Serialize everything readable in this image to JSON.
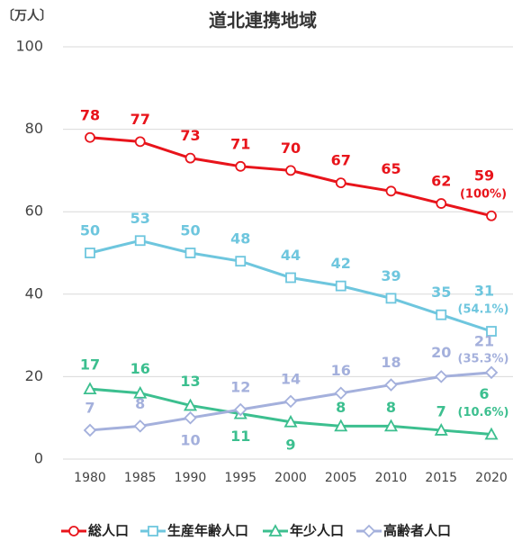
{
  "chart_data": {
    "type": "line",
    "title": "道北連携地域",
    "y_label": "〔万人〕",
    "categories": [
      "1980",
      "1985",
      "1990",
      "1995",
      "2000",
      "2005",
      "2010",
      "2015",
      "2020"
    ],
    "ylim": [
      0,
      100
    ],
    "yticks": [
      0,
      20,
      40,
      60,
      80,
      100
    ],
    "grid": true,
    "legend": "bottom",
    "series": [
      {
        "name": "総人口",
        "color": "#e8141b",
        "marker": "circle",
        "values": [
          78,
          77,
          73,
          71,
          70,
          67,
          65,
          62,
          59
        ],
        "share_label": "(100%)"
      },
      {
        "name": "生産年齢人口",
        "color": "#6ec6de",
        "marker": "square",
        "values": [
          50,
          53,
          50,
          48,
          44,
          42,
          39,
          35,
          31
        ],
        "share_label": "(54.1%)"
      },
      {
        "name": "年少人口",
        "color": "#3cbf8f",
        "marker": "triangle",
        "values": [
          17,
          16,
          13,
          11,
          9,
          8,
          8,
          7,
          6
        ],
        "share_label": "(10.6%)"
      },
      {
        "name": "高齢者人口",
        "color": "#a4b0dc",
        "marker": "diamond",
        "values": [
          7,
          8,
          10,
          12,
          14,
          16,
          18,
          20,
          21
        ],
        "share_label": "(35.3%)"
      }
    ]
  }
}
